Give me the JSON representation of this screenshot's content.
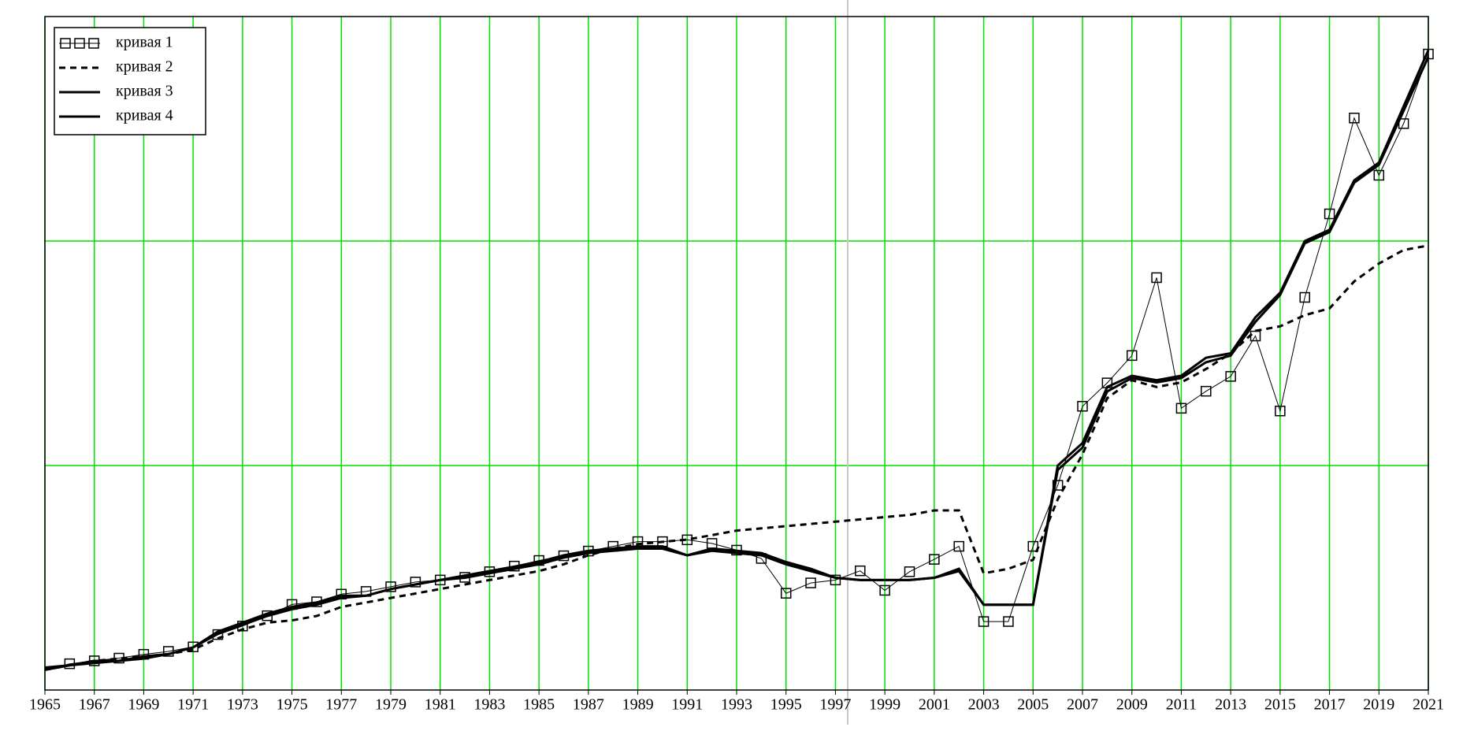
{
  "chart_data": {
    "type": "line",
    "x": [
      1965,
      1966,
      1967,
      1968,
      1969,
      1970,
      1971,
      1972,
      1973,
      1974,
      1975,
      1976,
      1977,
      1978,
      1979,
      1980,
      1981,
      1982,
      1983,
      1984,
      1985,
      1986,
      1987,
      1988,
      1989,
      1990,
      1991,
      1992,
      1993,
      1994,
      1995,
      1996,
      1997,
      1998,
      1999,
      2000,
      2001,
      2002,
      2003,
      2004,
      2005,
      2006,
      2007,
      2008,
      2009,
      2010,
      2011,
      2012,
      2013,
      2014,
      2015,
      2016,
      2017,
      2018,
      2019,
      2020,
      2021
    ],
    "series": [
      {
        "name": "кривая 1",
        "color": "#000000",
        "marker": "square",
        "dash": "solid",
        "width": 1,
        "values": [
          0.09,
          0.117,
          0.13,
          0.142,
          0.159,
          0.172,
          0.192,
          0.247,
          0.285,
          0.331,
          0.381,
          0.393,
          0.427,
          0.439,
          0.46,
          0.481,
          0.49,
          0.502,
          0.527,
          0.552,
          0.577,
          0.598,
          0.619,
          0.64,
          0.661,
          0.661,
          0.669,
          0.653,
          0.623,
          0.586,
          0.431,
          0.477,
          0.49,
          0.531,
          0.444,
          0.527,
          0.582,
          0.64,
          0.305,
          0.305,
          0.64,
          0.912,
          1.264,
          1.368,
          1.49,
          1.837,
          1.255,
          1.331,
          1.397,
          1.577,
          1.243,
          1.749,
          2.121,
          2.548,
          2.293,
          2.523,
          2.833
        ]
      },
      {
        "name": "кривая 2",
        "color": "#000000",
        "marker": "none",
        "dash": "dashed",
        "width": 3,
        "values": [
          0.09,
          0.11,
          0.13,
          0.14,
          0.15,
          0.16,
          0.18,
          0.23,
          0.27,
          0.3,
          0.31,
          0.33,
          0.37,
          0.39,
          0.41,
          0.43,
          0.45,
          0.47,
          0.49,
          0.51,
          0.53,
          0.56,
          0.6,
          0.63,
          0.65,
          0.66,
          0.67,
          0.69,
          0.71,
          0.72,
          0.73,
          0.74,
          0.75,
          0.76,
          0.77,
          0.78,
          0.8,
          0.8,
          0.52,
          0.54,
          0.58,
          0.85,
          1.05,
          1.3,
          1.38,
          1.35,
          1.37,
          1.43,
          1.5,
          1.6,
          1.62,
          1.67,
          1.7,
          1.82,
          1.9,
          1.96,
          1.98
        ]
      },
      {
        "name": "кривая 3",
        "color": "#000000",
        "marker": "none",
        "dash": "solid",
        "width": 3,
        "values": [
          0.09,
          0.11,
          0.13,
          0.13,
          0.15,
          0.16,
          0.19,
          0.25,
          0.29,
          0.33,
          0.36,
          0.38,
          0.41,
          0.42,
          0.45,
          0.47,
          0.49,
          0.51,
          0.53,
          0.55,
          0.57,
          0.6,
          0.62,
          0.63,
          0.64,
          0.64,
          0.6,
          0.63,
          0.62,
          0.61,
          0.57,
          0.54,
          0.5,
          0.49,
          0.49,
          0.49,
          0.5,
          0.54,
          0.38,
          0.38,
          0.38,
          1.0,
          1.1,
          1.35,
          1.4,
          1.38,
          1.4,
          1.48,
          1.5,
          1.66,
          1.77,
          2.0,
          2.05,
          2.27,
          2.35,
          2.6,
          2.85
        ]
      },
      {
        "name": "кривая 4",
        "color": "#000000",
        "marker": "none",
        "dash": "solid",
        "width": 3,
        "values": [
          0.1,
          0.11,
          0.12,
          0.13,
          0.14,
          0.16,
          0.19,
          0.26,
          0.3,
          0.34,
          0.37,
          0.39,
          0.42,
          0.42,
          0.45,
          0.47,
          0.49,
          0.5,
          0.52,
          0.54,
          0.56,
          0.59,
          0.61,
          0.62,
          0.63,
          0.63,
          0.6,
          0.62,
          0.61,
          0.6,
          0.56,
          0.53,
          0.5,
          0.49,
          0.49,
          0.49,
          0.5,
          0.53,
          0.38,
          0.38,
          0.38,
          0.98,
          1.08,
          1.33,
          1.39,
          1.37,
          1.39,
          1.46,
          1.49,
          1.64,
          1.76,
          1.99,
          2.04,
          2.26,
          2.34,
          2.58,
          2.82
        ]
      }
    ],
    "xlim": [
      1965,
      2021
    ],
    "xticks": [
      1965,
      1967,
      1969,
      1971,
      1973,
      1975,
      1977,
      1979,
      1981,
      1983,
      1985,
      1987,
      1989,
      1991,
      1993,
      1995,
      1997,
      1999,
      2001,
      2003,
      2005,
      2007,
      2009,
      2011,
      2013,
      2015,
      2017,
      2019,
      2021
    ],
    "ylim": [
      0,
      3
    ],
    "yticks": [
      1,
      2
    ],
    "grid": true,
    "grid_color": "#00e000",
    "legend": "upper left"
  }
}
